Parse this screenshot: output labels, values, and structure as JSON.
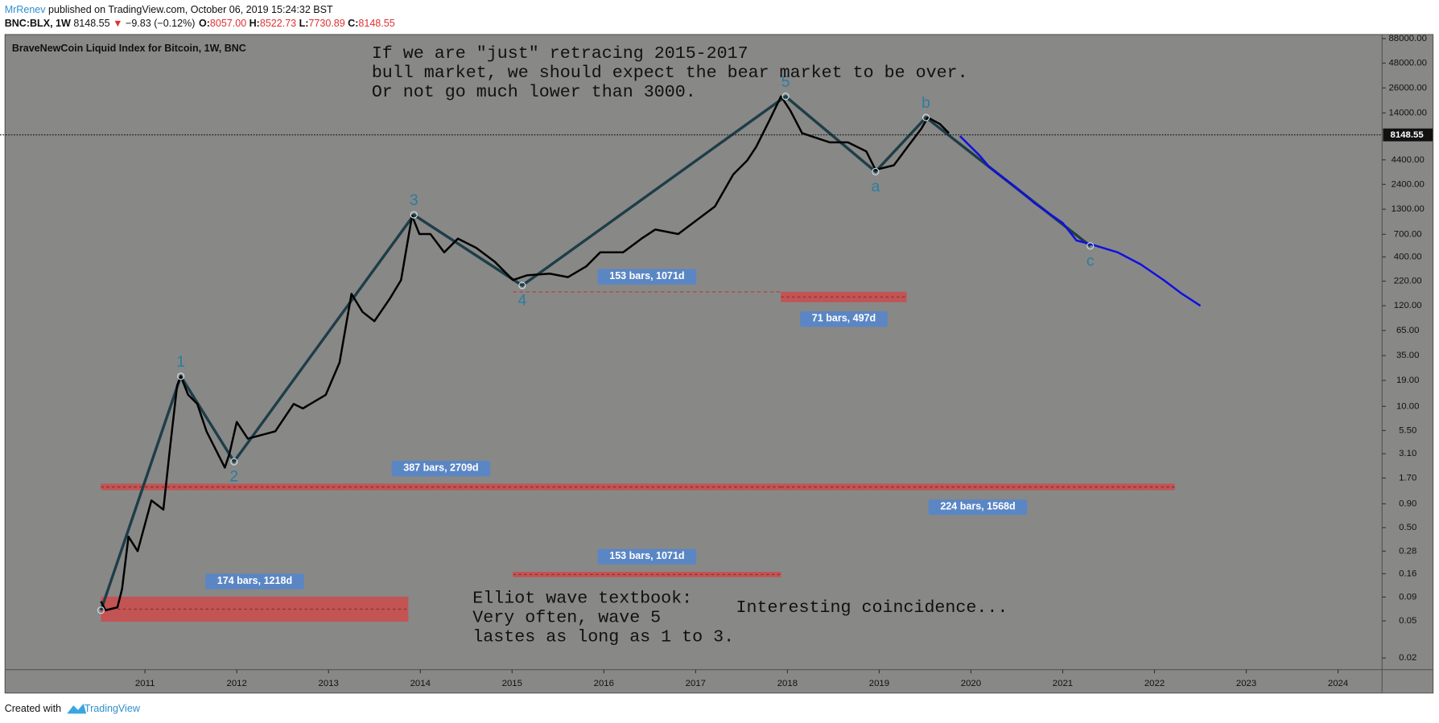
{
  "header": {
    "author": "MrRenev",
    "published": " published on TradingView.com, October 06, 2019 15:24:32 BST",
    "symbol": "BNC:BLX, 1W",
    "last": "8148.55",
    "arrow": "▼",
    "change": "−9.83 (−0.12%)",
    "ohlc": [
      {
        "key": "O:",
        "value": "8057.00"
      },
      {
        "key": "H:",
        "value": "8522.73"
      },
      {
        "key": "L:",
        "value": "7730.89"
      },
      {
        "key": "C:",
        "value": "8148.55"
      }
    ]
  },
  "chart_data": {
    "type": "line",
    "title": "BraveNewCoin Liquid Index for Bitcoin, 1W, BNC",
    "log_scale": true,
    "xlim": [
      2009.48,
      2024.48
    ],
    "xticks": [
      2011,
      2012,
      2013,
      2014,
      2015,
      2016,
      2017,
      2018,
      2019,
      2020,
      2021,
      2022,
      2023,
      2024
    ],
    "ylim": [
      0.015,
      96000
    ],
    "yticks": [
      {
        "value": 88000,
        "label": "88000.00"
      },
      {
        "value": 48000,
        "label": "48000.00"
      },
      {
        "value": 26000,
        "label": "26000.00"
      },
      {
        "value": 14000,
        "label": "14000.00"
      },
      {
        "value": 4400,
        "label": "4400.00"
      },
      {
        "value": 2400,
        "label": "2400.00"
      },
      {
        "value": 1300,
        "label": "1300.00"
      },
      {
        "value": 700,
        "label": "700.00"
      },
      {
        "value": 400,
        "label": "400.00"
      },
      {
        "value": 220,
        "label": "220.00"
      },
      {
        "value": 120,
        "label": "120.00"
      },
      {
        "value": 65,
        "label": "65.00"
      },
      {
        "value": 35,
        "label": "35.00"
      },
      {
        "value": 19,
        "label": "19.00"
      },
      {
        "value": 10,
        "label": "10.00"
      },
      {
        "value": 5.5,
        "label": "5.50"
      },
      {
        "value": 3.1,
        "label": "3.10"
      },
      {
        "value": 1.7,
        "label": "1.70"
      },
      {
        "value": 0.9,
        "label": "0.90"
      },
      {
        "value": 0.5,
        "label": "0.50"
      },
      0.28,
      0.16,
      0.09,
      0.05,
      0.02
    ],
    "current_price": {
      "value": 8148.55,
      "label": "8148.55"
    },
    "series": [
      {
        "color": "#000000",
        "x": [
          2010.52,
          2010.57,
          2010.7,
          2010.75,
          2010.82,
          2010.92,
          2011.07,
          2011.2,
          2011.27,
          2011.35,
          2011.39,
          2011.47,
          2011.57,
          2011.67,
          2011.87,
          2011.92,
          2012.0,
          2012.12,
          2012.42,
          2012.62,
          2012.72,
          2012.97,
          2013.12,
          2013.25,
          2013.37,
          2013.5,
          2013.67,
          2013.79,
          2013.91,
          2013.99,
          2014.11,
          2014.26,
          2014.41,
          2014.61,
          2014.81,
          2015.01,
          2015.16,
          2015.41,
          2015.61,
          2015.81,
          2015.96,
          2016.21,
          2016.41,
          2016.56,
          2016.81,
          2017.01,
          2017.21,
          2017.41,
          2017.56,
          2017.66,
          2017.81,
          2017.93,
          2018.03,
          2018.16,
          2018.31,
          2018.46,
          2018.66,
          2018.86,
          2018.96,
          2019.16,
          2019.31,
          2019.46,
          2019.53,
          2019.66,
          2019.76
        ],
        "values": [
          0.081,
          0.065,
          0.07,
          0.11,
          0.4,
          0.28,
          0.98,
          0.78,
          3.4,
          16.7,
          21,
          13.3,
          10.6,
          5.4,
          2.2,
          3.1,
          6.8,
          4.5,
          5.4,
          10.6,
          9.5,
          13.3,
          29.5,
          161,
          103,
          82,
          144,
          226,
          1107,
          705,
          705,
          448,
          629,
          500,
          356,
          226,
          254,
          265,
          243,
          318,
          448,
          448,
          629,
          788,
          705,
          989,
          1390,
          3070,
          4310,
          6070,
          11970,
          21100,
          15000,
          8510,
          7600,
          6790,
          6790,
          5420,
          3440,
          3850,
          6070,
          9530,
          12530,
          10690,
          8510
        ]
      },
      {
        "color": "#1010e0",
        "x": [
          2019.88,
          2020.1,
          2020.2,
          2020.5,
          2020.7,
          2021.0,
          2021.15,
          2021.3,
          2021.6,
          2021.85,
          2022.1,
          2022.3,
          2022.5
        ],
        "values": [
          7940,
          4830,
          3680,
          2190,
          1490,
          925,
          601,
          550,
          448,
          333,
          226,
          161,
          120
        ]
      }
    ],
    "waves": {
      "color": "#1e3d48",
      "label_color": "#2c7d9e",
      "x": [
        2010.52,
        2011.39,
        2011.97,
        2013.93,
        2015.11,
        2017.98,
        2018.96,
        2019.51,
        2021.3
      ],
      "values": [
        0.065,
        21,
        2.55,
        1132,
        198,
        21100,
        3290,
        12530,
        525
      ],
      "labels": [
        null,
        "1",
        "2",
        "3",
        "4",
        "5",
        "a",
        "b",
        "c"
      ]
    },
    "ranges": [
      {
        "label": "153 bars, 1071d",
        "x": [
          2015.01,
          2017.93
        ],
        "values": [
          169
        ],
        "label_side": "above"
      },
      {
        "label": "71 bars, 497d",
        "x": [
          2017.93,
          2019.3
        ],
        "values": [
          169,
          131
        ],
        "label_side": "below"
      },
      {
        "label": "387 bars, 2709d",
        "x": [
          2010.52,
          2017.93
        ],
        "values": [
          1.48,
          1.26
        ],
        "label_side": "above"
      },
      {
        "label": "224 bars, 1568d",
        "x": [
          2017.93,
          2022.22
        ],
        "values": [
          1.48,
          1.26
        ],
        "label_side": "below"
      },
      {
        "label": "153 bars, 1071d",
        "x": [
          2015.01,
          2017.93
        ],
        "values": [
          0.168,
          0.147
        ],
        "label_side": "above"
      },
      {
        "label": "174 bars, 1218d",
        "x": [
          2010.52,
          2013.87
        ],
        "values": [
          0.091,
          0.049
        ],
        "label_side": "above"
      }
    ],
    "annotations": [
      [
        "If we are \"just\" retracing 2015-2017",
        "bull market, we should expect the bear market to be over.",
        "Or not go much lower than 3000."
      ],
      [
        "Elliot wave textbook:",
        "Very often, wave 5",
        "lastes as long as 1 to 3."
      ],
      [
        "Interesting coincidence..."
      ]
    ]
  },
  "footer": {
    "prefix": "Created with",
    "brand": "TradingView"
  }
}
